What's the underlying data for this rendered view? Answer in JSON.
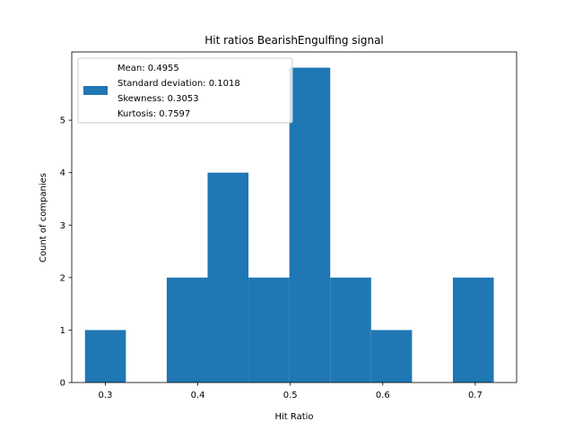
{
  "chart_data": {
    "type": "bar",
    "title": "Hit ratios BearishEngulfing signal",
    "xlabel": "Hit Ratio",
    "ylabel": "Count of companies",
    "xlim": [
      0.2637,
      0.7447
    ],
    "ylim": [
      0,
      6.3
    ],
    "xticks": [
      0.3,
      0.4,
      0.5,
      0.6,
      0.7
    ],
    "xtick_labels": [
      "0.3",
      "0.4",
      "0.5",
      "0.6",
      "0.7"
    ],
    "yticks": [
      0,
      1,
      2,
      3,
      4,
      5
    ],
    "ytick_labels": [
      "0",
      "1",
      "2",
      "3",
      "4",
      "5"
    ],
    "bins": [
      {
        "x0": 0.278,
        "x1": 0.3222,
        "count": 1
      },
      {
        "x0": 0.3222,
        "x1": 0.3664,
        "count": 0
      },
      {
        "x0": 0.3664,
        "x1": 0.4106,
        "count": 2
      },
      {
        "x0": 0.4106,
        "x1": 0.4548,
        "count": 4
      },
      {
        "x0": 0.4548,
        "x1": 0.499,
        "count": 2
      },
      {
        "x0": 0.499,
        "x1": 0.5432,
        "count": 6
      },
      {
        "x0": 0.5432,
        "x1": 0.5874,
        "count": 2
      },
      {
        "x0": 0.5874,
        "x1": 0.6316,
        "count": 1
      },
      {
        "x0": 0.6316,
        "x1": 0.6758,
        "count": 0
      },
      {
        "x0": 0.6758,
        "x1": 0.72,
        "count": 2
      }
    ],
    "bar_color": "#1f77b4",
    "grid": false,
    "legend": {
      "location": "upper left",
      "lines": [
        "Mean: 0.4955",
        "Standard deviation: 0.1018",
        "Skewness: 0.3053",
        "Kurtosis: 0.7597"
      ]
    }
  }
}
